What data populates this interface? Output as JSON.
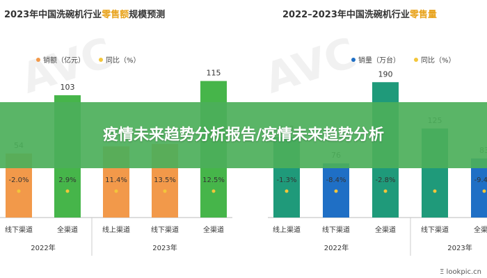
{
  "banner": {
    "title": "疫情未来趋势分析报告/疫情未来趋势分析"
  },
  "watermark": "AVC",
  "corner_mark": "Ξ lookpic.cn",
  "colors": {
    "orange": "#f2994a",
    "green": "#46b54a",
    "blue": "#1f6fc5",
    "teal": "#1f9a7a",
    "pct_dot": "#f3c63a",
    "highlight": "#e8a31c"
  },
  "chart_data": [
    {
      "type": "bar",
      "title_pre": "2023年中国洗碗机行业",
      "title_hl": "零售额",
      "title_post": "规模预测",
      "legend": [
        "销额（亿元）",
        "同比（%）"
      ],
      "categories": [
        "线下渠道",
        "全渠道",
        "线上渠道",
        "线下渠道",
        "全渠道"
      ],
      "groups": [
        {
          "label": "2022年",
          "count": 2
        },
        {
          "label": "2023年",
          "count": 3
        }
      ],
      "values": [
        54,
        103,
        60,
        62,
        115
      ],
      "value_labels": [
        "54",
        "103",
        "",
        "62",
        "115"
      ],
      "pct_labels": [
        "-2.0%",
        "2.9%",
        "11.4%",
        "13.5%",
        "12.5%"
      ],
      "bar_colors": [
        "orange",
        "green",
        "orange",
        "orange",
        "green"
      ],
      "ylim": [
        0,
        120
      ]
    },
    {
      "type": "bar",
      "title_pre": "2022–2023年中国洗碗机行业",
      "title_hl": "零售量",
      "title_post": "",
      "legend": [
        "销量（万台）",
        "同比（%）"
      ],
      "categories": [
        "线上渠道",
        "线下渠道",
        "全渠道",
        "线下渠道",
        "全渠道"
      ],
      "groups": [
        {
          "label": "2022年",
          "count": 3
        },
        {
          "label": "2023年",
          "count": 2
        }
      ],
      "values": [
        113,
        76,
        190,
        125,
        83
      ],
      "value_labels": [
        "113",
        "76",
        "190",
        "125",
        "83"
      ],
      "pct_labels": [
        "-1.3%",
        "-8.4%",
        "-2.8%",
        "",
        "-9.4%"
      ],
      "bar_colors": [
        "teal",
        "blue",
        "teal",
        "teal",
        "blue"
      ],
      "ylim": [
        0,
        200
      ]
    }
  ]
}
